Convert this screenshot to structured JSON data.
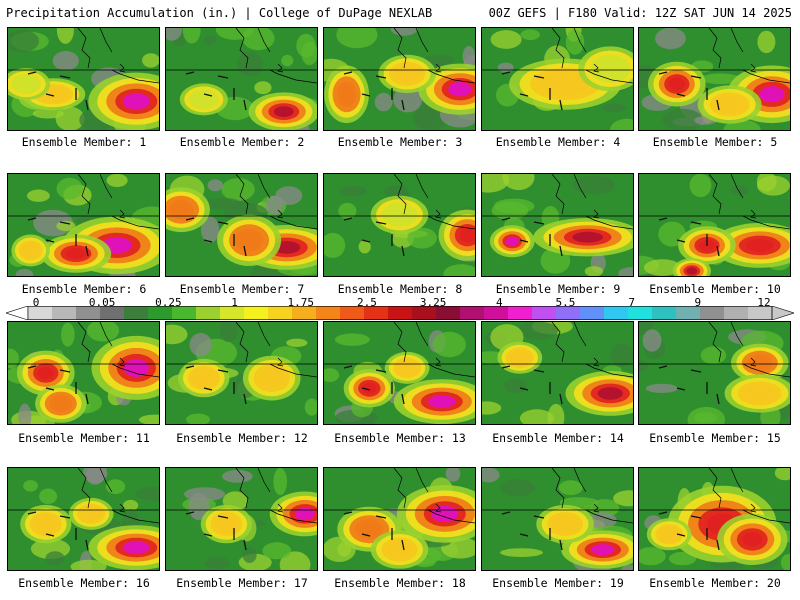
{
  "header": {
    "left": "Precipitation Accumulation (in.) | College of DuPage NEXLAB",
    "right": "00Z GEFS | F180 Valid: 12Z SAT JUN 14 2025"
  },
  "members": [
    {
      "label": "Ensemble Member: 1",
      "blobs": [
        [
          0.85,
          0.72,
          30,
          18,
          4.5
        ],
        [
          0.3,
          0.65,
          20,
          10,
          1.2
        ],
        [
          0.12,
          0.55,
          15,
          10,
          1.0
        ]
      ]
    },
    {
      "label": "Ensemble Member: 2",
      "blobs": [
        [
          0.78,
          0.82,
          22,
          12,
          3.8
        ],
        [
          0.25,
          0.7,
          15,
          10,
          1.0
        ]
      ]
    },
    {
      "label": "Ensemble Member: 3",
      "blobs": [
        [
          0.9,
          0.6,
          26,
          16,
          4.8
        ],
        [
          0.15,
          0.65,
          14,
          18,
          2.6
        ],
        [
          0.55,
          0.45,
          18,
          12,
          1.2
        ]
      ]
    },
    {
      "label": "Ensemble Member: 4",
      "blobs": [
        [
          0.55,
          0.55,
          35,
          16,
          1.2
        ],
        [
          0.85,
          0.4,
          20,
          14,
          1.0
        ]
      ]
    },
    {
      "label": "Ensemble Member: 5",
      "blobs": [
        [
          0.88,
          0.65,
          28,
          18,
          5.0
        ],
        [
          0.25,
          0.55,
          18,
          14,
          3.0
        ],
        [
          0.6,
          0.75,
          20,
          12,
          1.5
        ]
      ]
    },
    {
      "label": "Ensemble Member: 6",
      "blobs": [
        [
          0.72,
          0.7,
          34,
          18,
          5.2
        ],
        [
          0.45,
          0.78,
          22,
          12,
          2.8
        ],
        [
          0.15,
          0.75,
          12,
          10,
          1.8
        ]
      ]
    },
    {
      "label": "Ensemble Member: 7",
      "blobs": [
        [
          0.8,
          0.72,
          30,
          14,
          4.2
        ],
        [
          0.55,
          0.65,
          20,
          16,
          2.5
        ],
        [
          0.1,
          0.35,
          18,
          14,
          2.0
        ]
      ]
    },
    {
      "label": "Ensemble Member: 8",
      "blobs": [
        [
          0.95,
          0.6,
          18,
          16,
          3.2
        ],
        [
          0.5,
          0.4,
          18,
          12,
          1.0
        ]
      ]
    },
    {
      "label": "Ensemble Member: 9",
      "blobs": [
        [
          0.7,
          0.62,
          34,
          12,
          3.6
        ],
        [
          0.2,
          0.66,
          14,
          10,
          4.5
        ]
      ]
    },
    {
      "label": "Ensemble Member: 10",
      "blobs": [
        [
          0.8,
          0.7,
          30,
          14,
          3.5
        ],
        [
          0.45,
          0.7,
          18,
          12,
          2.8
        ],
        [
          0.35,
          0.95,
          12,
          8,
          4.0
        ]
      ]
    },
    {
      "label": "Ensemble Member: 11",
      "blobs": [
        [
          0.85,
          0.45,
          28,
          20,
          5.2
        ],
        [
          0.25,
          0.5,
          18,
          14,
          3.0
        ],
        [
          0.35,
          0.8,
          16,
          12,
          2.5
        ]
      ]
    },
    {
      "label": "Ensemble Member: 12",
      "blobs": [
        [
          0.7,
          0.55,
          18,
          14,
          1.3
        ],
        [
          0.25,
          0.55,
          16,
          12,
          1.2
        ]
      ]
    },
    {
      "label": "Ensemble Member: 13",
      "blobs": [
        [
          0.78,
          0.78,
          30,
          14,
          5.0
        ],
        [
          0.3,
          0.65,
          16,
          12,
          3.0
        ],
        [
          0.55,
          0.45,
          14,
          10,
          1.5
        ]
      ]
    },
    {
      "label": "Ensemble Member: 14",
      "blobs": [
        [
          0.85,
          0.7,
          28,
          14,
          4.0
        ],
        [
          0.25,
          0.35,
          14,
          10,
          1.3
        ]
      ]
    },
    {
      "label": "Ensemble Member: 15",
      "blobs": [
        [
          0.8,
          0.4,
          18,
          12,
          2.2
        ],
        [
          0.8,
          0.7,
          22,
          12,
          1.2
        ]
      ]
    },
    {
      "label": "Ensemble Member: 16",
      "blobs": [
        [
          0.85,
          0.78,
          30,
          14,
          5.0
        ],
        [
          0.25,
          0.55,
          16,
          12,
          1.5
        ],
        [
          0.55,
          0.45,
          14,
          10,
          1.2
        ]
      ]
    },
    {
      "label": "Ensemble Member: 17",
      "blobs": [
        [
          0.92,
          0.45,
          22,
          14,
          5.2
        ],
        [
          0.4,
          0.55,
          16,
          12,
          1.3
        ]
      ]
    },
    {
      "label": "Ensemble Member: 18",
      "blobs": [
        [
          0.8,
          0.45,
          30,
          18,
          4.5
        ],
        [
          0.3,
          0.6,
          20,
          14,
          2.5
        ],
        [
          0.5,
          0.8,
          18,
          12,
          1.5
        ]
      ]
    },
    {
      "label": "Ensemble Member: 19",
      "blobs": [
        [
          0.8,
          0.8,
          26,
          12,
          5.0
        ],
        [
          0.55,
          0.55,
          18,
          12,
          1.5
        ]
      ]
    },
    {
      "label": "Ensemble Member: 20",
      "blobs": [
        [
          0.55,
          0.55,
          34,
          24,
          3.0
        ],
        [
          0.75,
          0.7,
          22,
          16,
          3.5
        ],
        [
          0.2,
          0.65,
          14,
          10,
          1.8
        ]
      ]
    }
  ],
  "colorbar": {
    "tick_labels": [
      "0",
      "0.05",
      "0.25",
      "1",
      "1.75",
      "2.5",
      "3.25",
      "4",
      "5.5",
      "7",
      "9",
      "12"
    ],
    "colors": [
      "#d8d8d8",
      "#b8b8b8",
      "#909090",
      "#707070",
      "#3c7f3c",
      "#2d9a2d",
      "#4ab82e",
      "#9bd12f",
      "#d6e62a",
      "#f6f01f",
      "#f6d31e",
      "#f5ae1c",
      "#f3851a",
      "#ef5a18",
      "#e33216",
      "#c81414",
      "#a8101e",
      "#8a0e34",
      "#b01070",
      "#d0109c",
      "#f020d0",
      "#c050f0",
      "#9070f8",
      "#6090f8",
      "#30c8f0",
      "#20e0e0",
      "#30c0c0",
      "#70b0b0",
      "#909090",
      "#b0b0b0",
      "#c8c8c8"
    ]
  }
}
